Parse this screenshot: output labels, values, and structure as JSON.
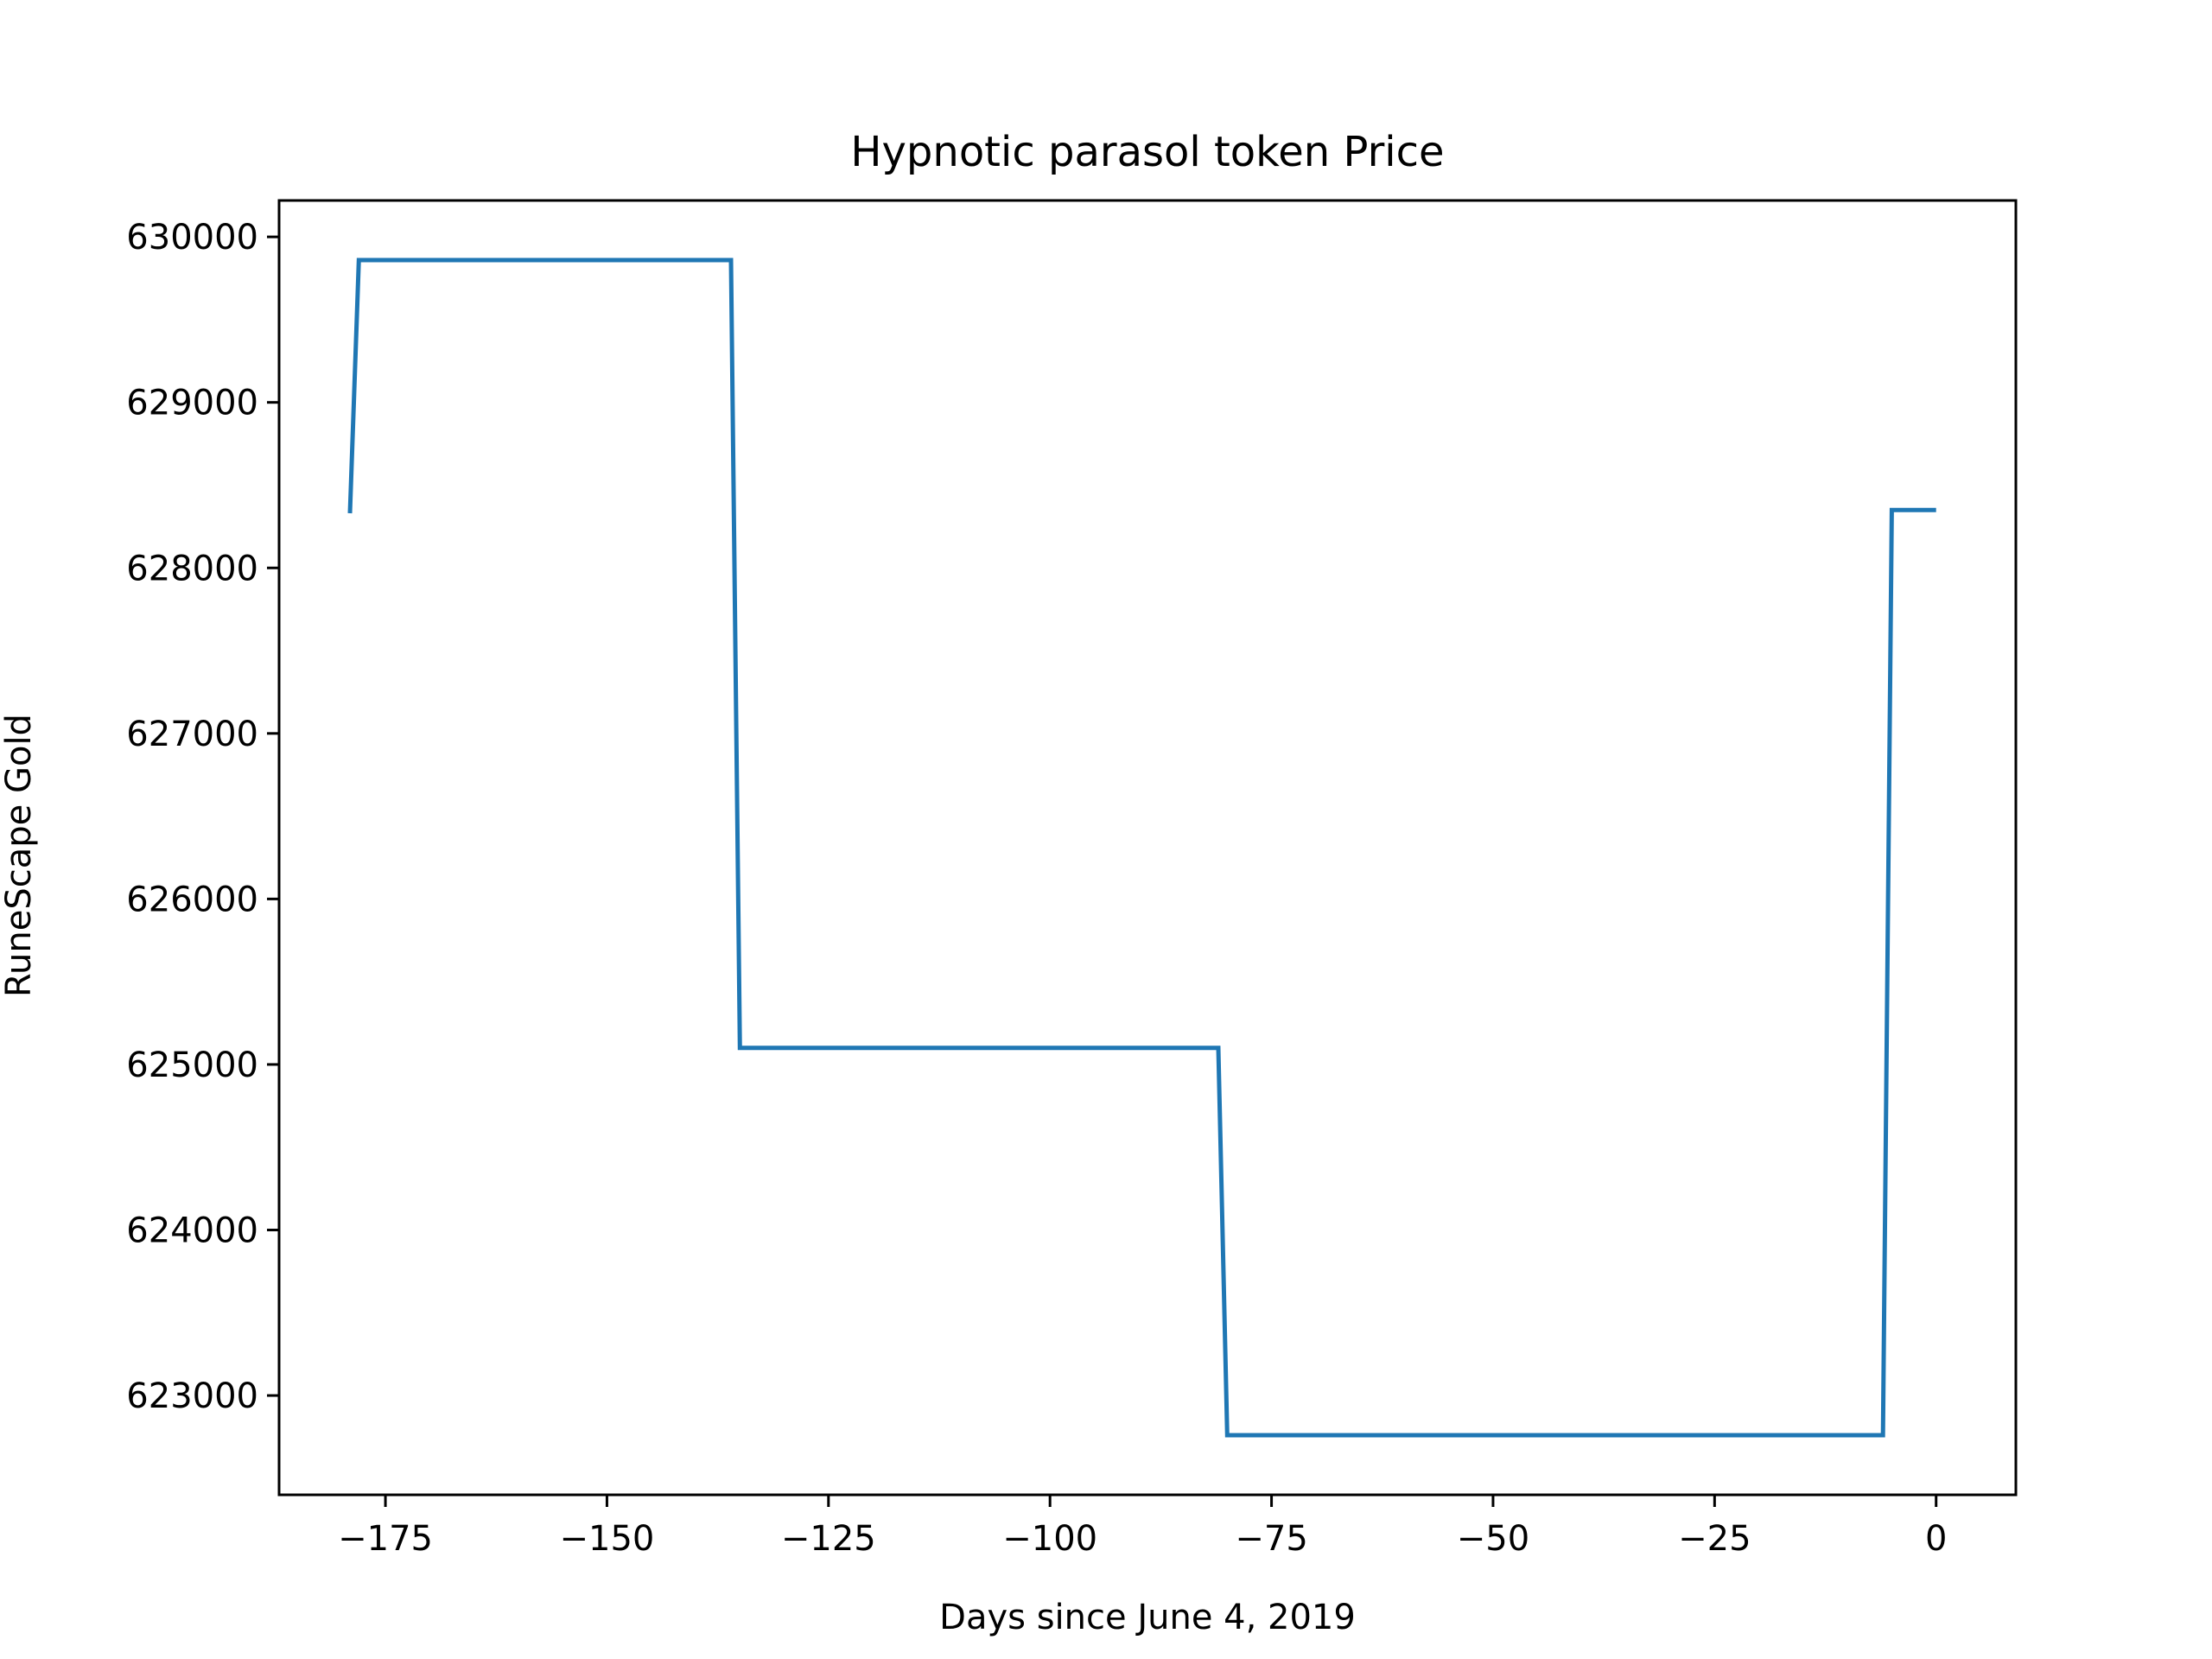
{
  "chart_data": {
    "type": "line",
    "title": "Hypnotic parasol token Price",
    "xlabel": "Days since June 4, 2019",
    "ylabel": "RuneScape Gold",
    "xlim": [
      -187,
      9
    ],
    "ylim": [
      622400,
      630220
    ],
    "x_ticks": [
      -175,
      -150,
      -125,
      -100,
      -75,
      -50,
      -25,
      0
    ],
    "x_tick_labels": [
      "−175",
      "−150",
      "−125",
      "−100",
      "−75",
      "−50",
      "−25",
      "0"
    ],
    "y_ticks": [
      623000,
      624000,
      625000,
      626000,
      627000,
      628000,
      629000,
      630000
    ],
    "y_tick_labels": [
      "623000",
      "624000",
      "625000",
      "626000",
      "627000",
      "628000",
      "629000",
      "630000"
    ],
    "grid": false,
    "legend": "none",
    "series": [
      {
        "color": "#1f77b4",
        "x": [
          -179,
          -178,
          -136,
          -135,
          -81,
          -80,
          -6,
          -5,
          0
        ],
        "y": [
          628330,
          629860,
          629860,
          625100,
          625100,
          622760,
          622760,
          628350,
          628350
        ]
      }
    ]
  }
}
